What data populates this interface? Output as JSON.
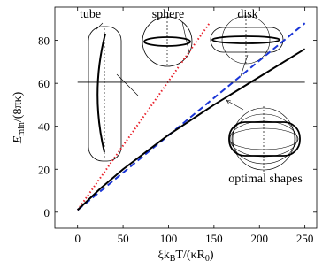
{
  "chart_data": {
    "type": "line",
    "xlabel": [
      "ξk",
      "B",
      "T/(κR",
      "0",
      ")"
    ],
    "ylabel": [
      "E",
      "min",
      "/(8πκ)"
    ],
    "xlim": [
      -25,
      263
    ],
    "ylim": [
      -7.5,
      95.5
    ],
    "xticks": [
      0,
      50,
      100,
      150,
      200,
      250
    ],
    "yticks": [
      0,
      20,
      40,
      60,
      80
    ],
    "series": [
      {
        "name": "sphere",
        "color": "#e8202a",
        "style": "dotted",
        "x": [
          0,
          145
        ],
        "values": [
          1,
          88
        ]
      },
      {
        "name": "disk",
        "color": "#1a35d6",
        "style": "dashed",
        "x": [
          0,
          250
        ],
        "values": [
          1,
          88
        ]
      },
      {
        "name": "optimal shapes",
        "color": "#000000",
        "style": "solid",
        "x": [
          0,
          25,
          50,
          100,
          150,
          200,
          250
        ],
        "values": [
          1,
          11,
          20,
          36,
          50,
          63,
          76
        ]
      },
      {
        "name": "tube",
        "color": "#000000",
        "style": "thin",
        "x": [
          0,
          250
        ],
        "values": [
          60.5,
          60.5
        ]
      }
    ]
  }
}
